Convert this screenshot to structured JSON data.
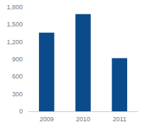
{
  "chart_data": {
    "type": "bar",
    "categories": [
      "2009",
      "2010",
      "2011"
    ],
    "values": [
      1360,
      1680,
      920
    ],
    "color": "#0b4a8b",
    "ylim": [
      0,
      1800
    ],
    "yticks": [
      0,
      300,
      600,
      900,
      {
        "value": 1200,
        "label": "1,200"
      },
      {
        "value": 1500,
        "label": "1,500"
      },
      {
        "value": 1800,
        "label": "1,800"
      }
    ],
    "grid": false
  }
}
